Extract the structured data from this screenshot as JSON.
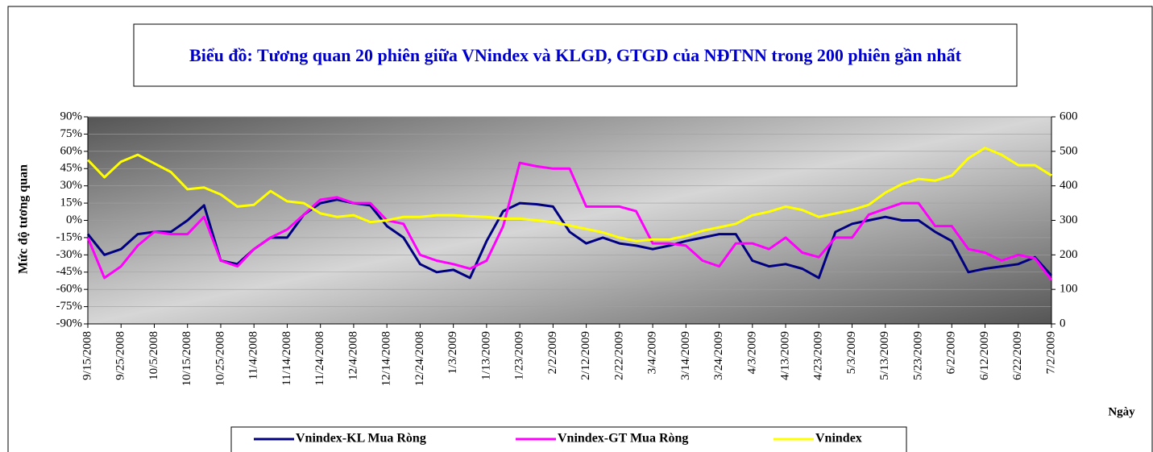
{
  "chart_data": {
    "type": "line",
    "title": "Biểu đồ: Tương quan 20 phiên giữa VNindex và KLGD, GTGD của NĐTNN trong 200 phiên gần nhất",
    "ylabel": "Mức độ tương quan",
    "xlabel": "Ngày",
    "x": [
      "9/15/2008",
      "9/20/2008",
      "9/25/2008",
      "9/30/2008",
      "10/5/2008",
      "10/10/2008",
      "10/15/2008",
      "10/20/2008",
      "10/25/2008",
      "10/30/2008",
      "11/4/2008",
      "11/9/2008",
      "11/14/2008",
      "11/19/2008",
      "11/24/2008",
      "11/29/2008",
      "12/4/2008",
      "12/9/2008",
      "12/14/2008",
      "12/19/2008",
      "12/24/2008",
      "12/29/2008",
      "1/3/2009",
      "1/8/2009",
      "1/13/2009",
      "1/18/2009",
      "1/23/2009",
      "1/28/2009",
      "2/2/2009",
      "2/7/2009",
      "2/12/2009",
      "2/17/2009",
      "2/22/2009",
      "2/27/2009",
      "3/4/2009",
      "3/9/2009",
      "3/14/2009",
      "3/19/2009",
      "3/24/2009",
      "3/29/2009",
      "4/3/2009",
      "4/8/2009",
      "4/13/2009",
      "4/18/2009",
      "4/23/2009",
      "4/28/2009",
      "5/3/2009",
      "5/8/2009",
      "5/13/2009",
      "5/18/2009",
      "5/23/2009",
      "5/28/2009",
      "6/2/2009",
      "6/7/2009",
      "6/12/2009",
      "6/17/2009",
      "6/22/2009",
      "6/27/2009",
      "7/2/2009"
    ],
    "series": [
      {
        "name": "Vnindex-KL Mua Ròng",
        "color": "#000080",
        "values": [
          -12,
          -30,
          -25,
          -12,
          -10,
          -10,
          0,
          13,
          -35,
          -38,
          -25,
          -15,
          -15,
          5,
          15,
          18,
          15,
          13,
          -5,
          -15,
          -38,
          -45,
          -43,
          -50,
          -18,
          8,
          15,
          14,
          12,
          -10,
          -20,
          -15,
          -20,
          -22,
          -25,
          -22,
          -18,
          -15,
          -12,
          -12,
          -35,
          -40,
          -38,
          -42,
          -50,
          -10,
          -3,
          0,
          3,
          0,
          0,
          -10,
          -18,
          -45,
          -42,
          -40,
          -38,
          -32,
          -48
        ]
      },
      {
        "name": "Vnindex-GT Mua Ròng",
        "color": "#ff00ff",
        "values": [
          -15,
          -50,
          -40,
          -22,
          -10,
          -12,
          -12,
          3,
          -35,
          -40,
          -25,
          -15,
          -8,
          5,
          18,
          20,
          15,
          15,
          0,
          -3,
          -30,
          -35,
          -38,
          -42,
          -35,
          -5,
          50,
          47,
          45,
          45,
          12,
          12,
          12,
          8,
          -20,
          -20,
          -22,
          -35,
          -40,
          -20,
          -20,
          -25,
          -15,
          -28,
          -32,
          -15,
          -15,
          5,
          10,
          15,
          15,
          -5,
          -5,
          -25,
          -28,
          -35,
          -30,
          -33,
          -52
        ]
      },
      {
        "name": "Vnindex",
        "color": "#ffff00",
        "axis": "y2",
        "values": [
          475,
          425,
          470,
          490,
          465,
          440,
          390,
          395,
          375,
          340,
          345,
          385,
          355,
          350,
          320,
          310,
          315,
          295,
          300,
          310,
          310,
          315,
          315,
          312,
          310,
          305,
          305,
          300,
          295,
          285,
          275,
          265,
          250,
          240,
          245,
          245,
          255,
          270,
          280,
          290,
          315,
          325,
          340,
          330,
          310,
          320,
          330,
          345,
          380,
          405,
          420,
          415,
          430,
          480,
          510,
          490,
          460,
          460,
          430
        ]
      }
    ],
    "xlim": [
      "9/15/2008",
      "7/2/2009"
    ],
    "xticks": [
      "9/15/2008",
      "9/25/2008",
      "10/5/2008",
      "10/15/2008",
      "10/25/2008",
      "11/4/2008",
      "11/14/2008",
      "11/24/2008",
      "12/4/2008",
      "12/14/2008",
      "12/24/2008",
      "1/3/2009",
      "1/13/2009",
      "1/23/2009",
      "2/2/2009",
      "2/12/2009",
      "2/22/2009",
      "3/4/2009",
      "3/14/2009",
      "3/24/2009",
      "4/3/2009",
      "4/13/2009",
      "4/23/2009",
      "5/3/2009",
      "5/13/2009",
      "5/23/2009",
      "6/2/2009",
      "6/12/2009",
      "6/22/2009",
      "7/2/2009"
    ],
    "ylim": [
      -90,
      90
    ],
    "yticks": [
      {
        "value": 90,
        "label": "90%"
      },
      {
        "value": 75,
        "label": "75%"
      },
      {
        "value": 60,
        "label": "60%"
      },
      {
        "value": 45,
        "label": "45%"
      },
      {
        "value": 30,
        "label": "30%"
      },
      {
        "value": 15,
        "label": "15%"
      },
      {
        "value": 0,
        "label": "0%"
      },
      {
        "value": -15,
        "label": "-15%"
      },
      {
        "value": -30,
        "label": "-30%"
      },
      {
        "value": -45,
        "label": "-45%"
      },
      {
        "value": -60,
        "label": "-60%"
      },
      {
        "value": -75,
        "label": "-75%"
      },
      {
        "value": -90,
        "label": "-90%"
      }
    ],
    "y2lim": [
      0,
      600
    ],
    "y2ticks": [
      0,
      100,
      200,
      300,
      400,
      500,
      600
    ],
    "grid": true,
    "legend": "bottom"
  }
}
